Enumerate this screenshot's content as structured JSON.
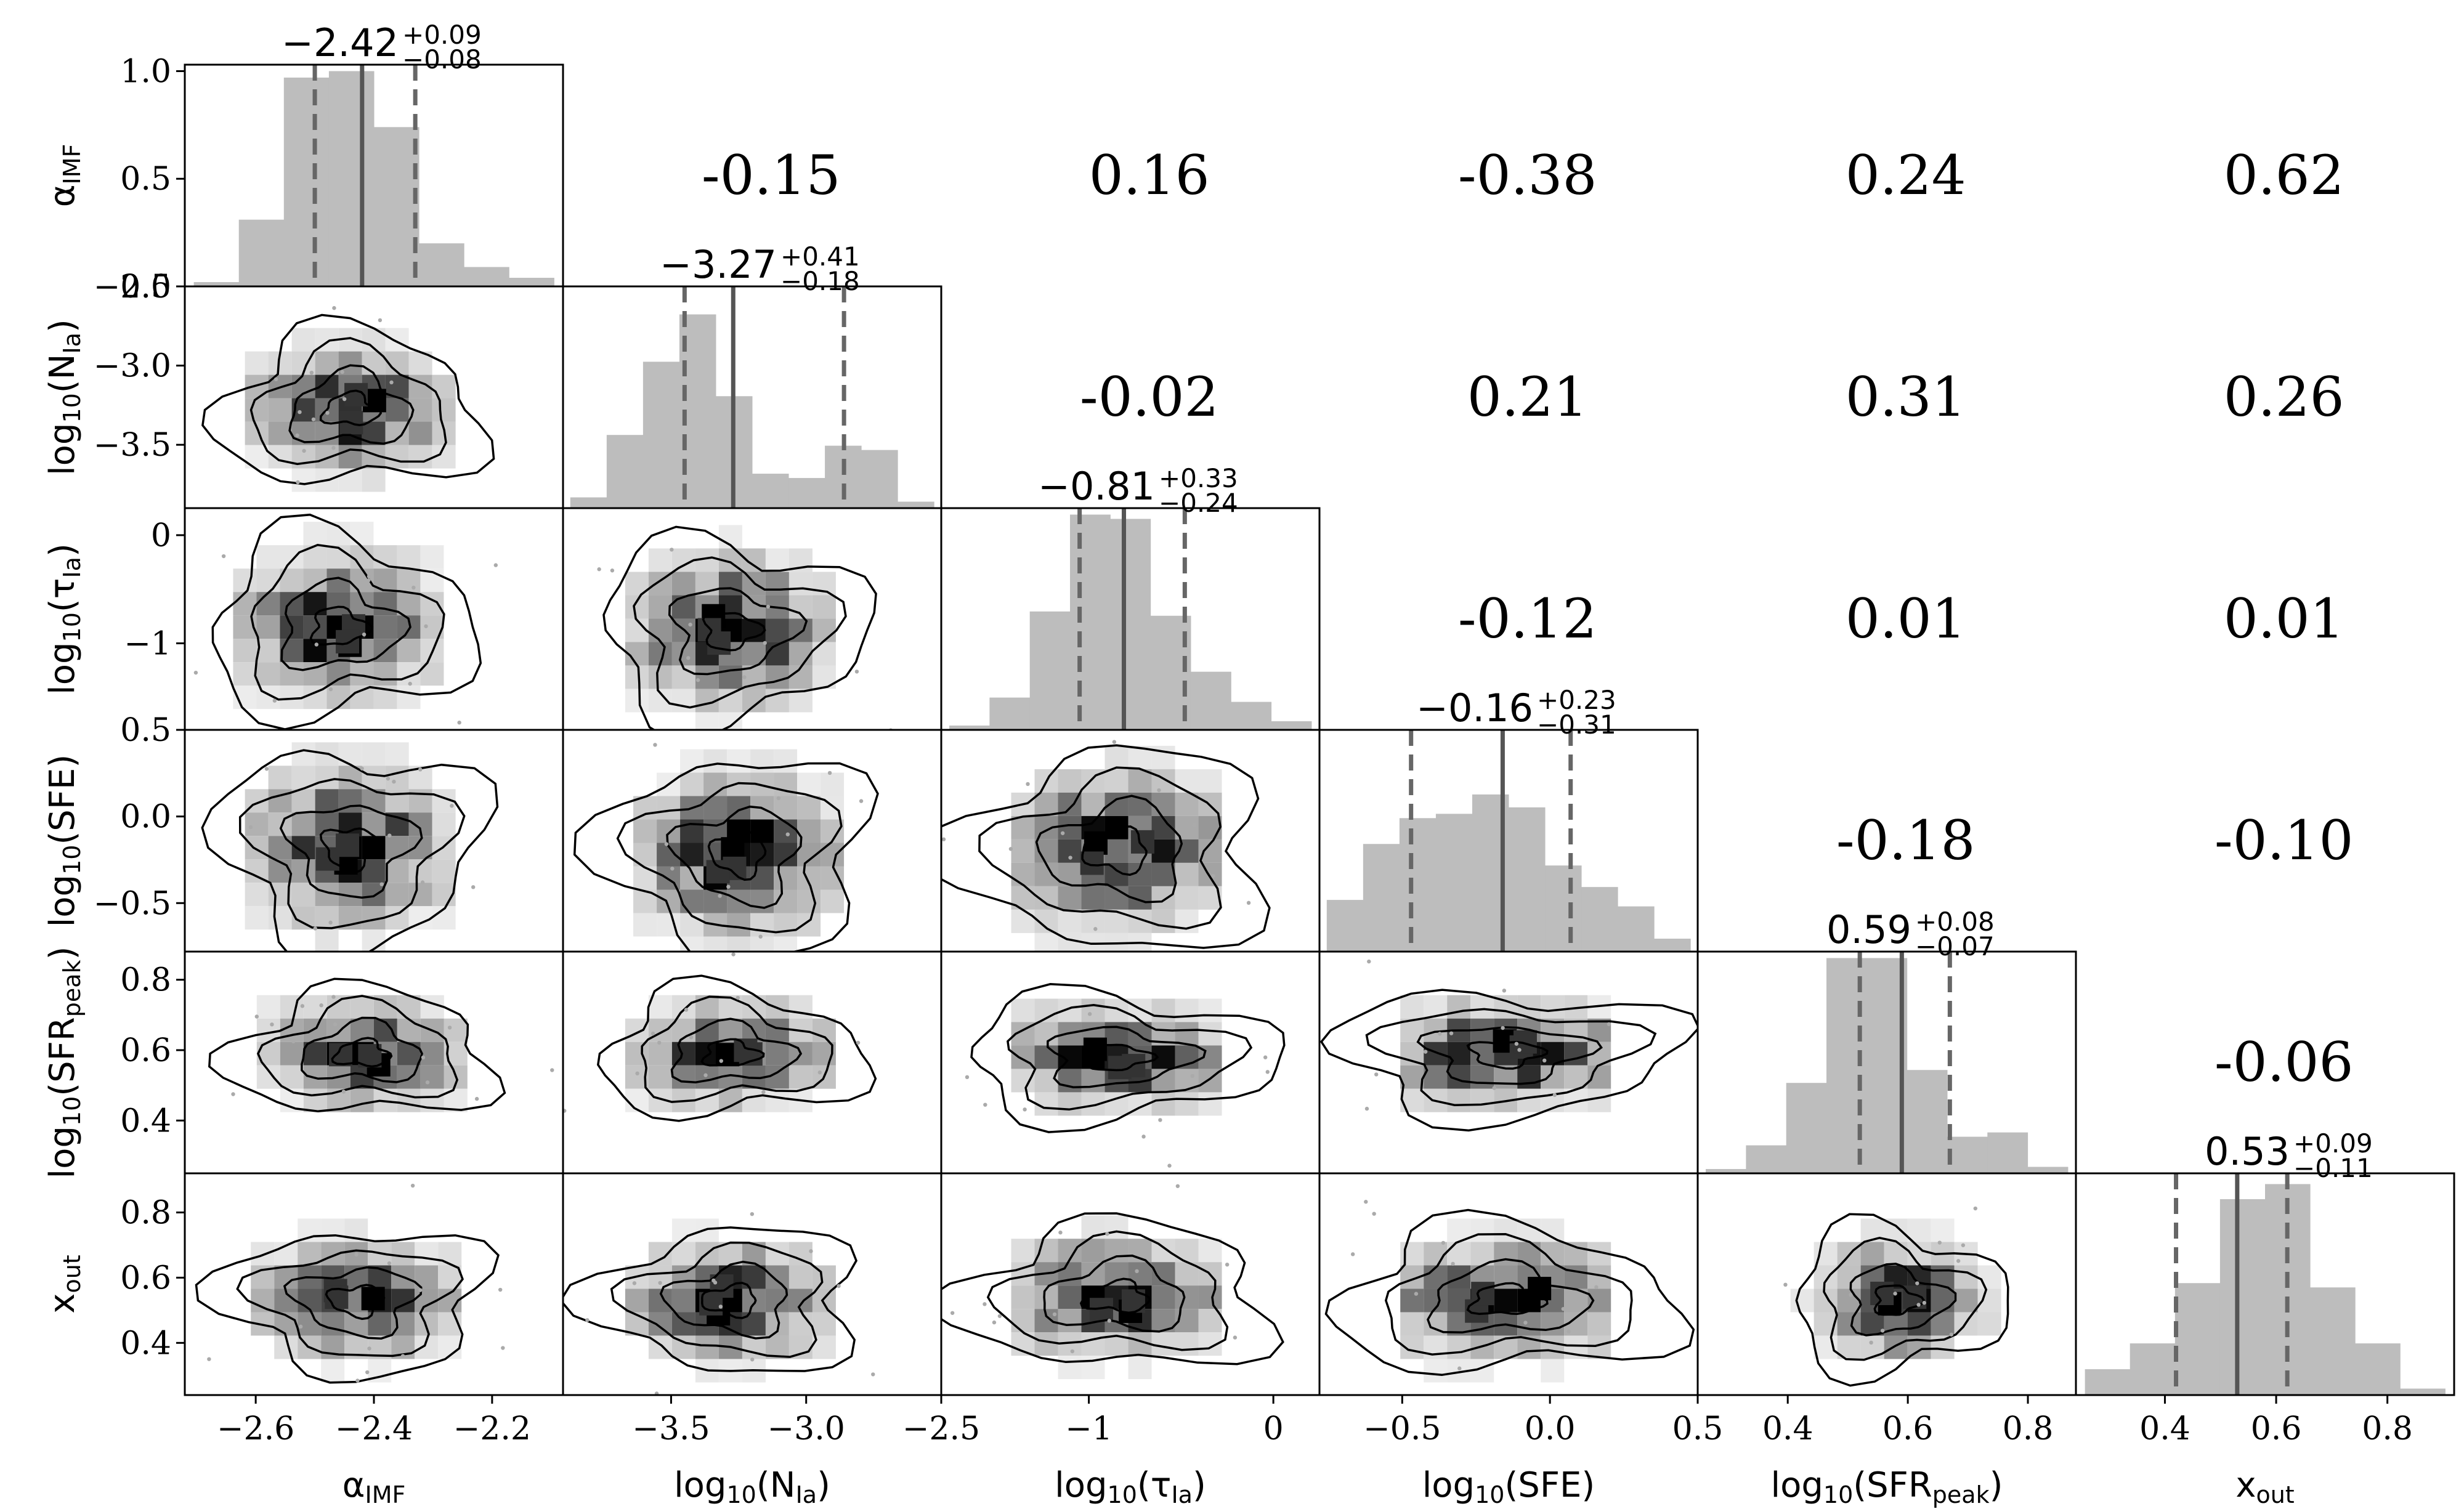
{
  "chart_data": {
    "type": "corner",
    "parameters": [
      {
        "label": "α",
        "label_sub": "IMF",
        "label_pre": "",
        "label_post": "",
        "range": [
          -2.72,
          -2.08
        ],
        "ticks": [
          -2.6,
          -2.4,
          -2.2
        ],
        "tick_labels": [
          "−2.6",
          "−2.4",
          "−2.2"
        ],
        "median": -2.42,
        "lo": -2.5,
        "hi": -2.33,
        "title_main": "−2.42",
        "title_plus": "+0.09",
        "title_minus": "−0.08"
      },
      {
        "label": "log",
        "label_sub": "10",
        "label_pre": "(N",
        "label_sub2": "Ia",
        "label_post": ")",
        "range": [
          -3.9,
          -2.5
        ],
        "ticks": [
          -3.5,
          -3.0,
          -2.5
        ],
        "tick_labels": [
          "−3.5",
          "−3.0",
          "−2.5"
        ],
        "median": -3.27,
        "lo": -3.45,
        "hi": -2.86,
        "title_main": "−3.27",
        "title_plus": "+0.41",
        "title_minus": "−0.18"
      },
      {
        "label": "log",
        "label_sub": "10",
        "label_pre": "(τ",
        "label_sub2": "Ia",
        "label_post": ")",
        "range": [
          -1.8,
          0.25
        ],
        "ticks": [
          -1,
          0
        ],
        "tick_labels": [
          "−1",
          "0"
        ],
        "median": -0.81,
        "lo": -1.05,
        "hi": -0.48,
        "title_main": "−0.81",
        "title_plus": "+0.33",
        "title_minus": "−0.24"
      },
      {
        "label": "log",
        "label_sub": "10",
        "label_pre": "(SFE)",
        "label_sub2": "",
        "label_post": "",
        "range": [
          -0.78,
          0.5
        ],
        "ticks": [
          -0.5,
          0.0,
          0.5
        ],
        "tick_labels": [
          "−0.5",
          "0.0",
          "0.5"
        ],
        "median": -0.16,
        "lo": -0.47,
        "hi": 0.07,
        "title_main": "−0.16",
        "title_plus": "+0.23",
        "title_minus": "−0.31"
      },
      {
        "label": "log",
        "label_sub": "10",
        "label_pre": "(SFR",
        "label_sub2": "peak",
        "label_post": ")",
        "range": [
          0.25,
          0.88
        ],
        "ticks": [
          0.4,
          0.6,
          0.8
        ],
        "tick_labels": [
          "0.4",
          "0.6",
          "0.8"
        ],
        "median": 0.59,
        "lo": 0.52,
        "hi": 0.67,
        "title_main": "0.59",
        "title_plus": "+0.08",
        "title_minus": "−0.07"
      },
      {
        "label": "x",
        "label_sub": "out",
        "label_pre": "",
        "label_sub2": "",
        "label_post": "",
        "range": [
          0.24,
          0.92
        ],
        "ticks": [
          0.4,
          0.6,
          0.8
        ],
        "tick_labels": [
          "0.4",
          "0.6",
          "0.8"
        ],
        "median": 0.53,
        "lo": 0.42,
        "hi": 0.62,
        "title_main": "0.53",
        "title_plus": "+0.09",
        "title_minus": "−0.11"
      }
    ],
    "diag_yaxis": {
      "range": [
        0,
        1.03
      ],
      "ticks": [
        0.0,
        0.5,
        1.0
      ],
      "tick_labels": [
        "0.0",
        "0.5",
        "1.0"
      ]
    },
    "histograms": [
      [
        0.02,
        0.31,
        0.97,
        1.0,
        0.74,
        0.2,
        0.09,
        0.04
      ],
      [
        0.05,
        0.34,
        0.68,
        0.9,
        0.52,
        0.16,
        0.14,
        0.29,
        0.27,
        0.03
      ],
      [
        0.02,
        0.15,
        0.55,
        1.0,
        0.98,
        0.53,
        0.27,
        0.13,
        0.04
      ],
      [
        0.24,
        0.5,
        0.62,
        0.64,
        0.73,
        0.67,
        0.4,
        0.3,
        0.21,
        0.06
      ],
      [
        0.02,
        0.13,
        0.42,
        1.0,
        1.0,
        0.48,
        0.17,
        0.19,
        0.03
      ],
      [
        0.12,
        0.24,
        0.52,
        0.91,
        0.98,
        0.5,
        0.24,
        0.03
      ]
    ],
    "correlations": [
      {
        "row": 0,
        "col": 1,
        "value": "-0.15"
      },
      {
        "row": 0,
        "col": 2,
        "value": "0.16"
      },
      {
        "row": 0,
        "col": 3,
        "value": "-0.38"
      },
      {
        "row": 0,
        "col": 4,
        "value": "0.24"
      },
      {
        "row": 0,
        "col": 5,
        "value": "0.62"
      },
      {
        "row": 1,
        "col": 2,
        "value": "-0.02"
      },
      {
        "row": 1,
        "col": 3,
        "value": "0.21"
      },
      {
        "row": 1,
        "col": 4,
        "value": "0.31"
      },
      {
        "row": 1,
        "col": 5,
        "value": "0.26"
      },
      {
        "row": 2,
        "col": 3,
        "value": "-0.12"
      },
      {
        "row": 2,
        "col": 4,
        "value": "0.01"
      },
      {
        "row": 2,
        "col": 5,
        "value": "0.01"
      },
      {
        "row": 3,
        "col": 4,
        "value": "-0.18"
      },
      {
        "row": 3,
        "col": 5,
        "value": "-0.10"
      },
      {
        "row": 4,
        "col": 5,
        "value": "-0.06"
      }
    ],
    "pair_centers": [
      {
        "row": 1,
        "col": 0,
        "x": -2.44,
        "y": -3.28,
        "sx": 0.1,
        "sy": 0.22
      },
      {
        "row": 2,
        "col": 0,
        "x": -2.46,
        "y": -0.85,
        "sx": 0.1,
        "sy": 0.38
      },
      {
        "row": 2,
        "col": 1,
        "x": -3.28,
        "y": -0.88,
        "sx": 0.22,
        "sy": 0.38
      },
      {
        "row": 3,
        "col": 0,
        "x": -2.44,
        "y": -0.18,
        "sx": 0.1,
        "sy": 0.26
      },
      {
        "row": 3,
        "col": 1,
        "x": -3.25,
        "y": -0.22,
        "sx": 0.22,
        "sy": 0.26
      },
      {
        "row": 3,
        "col": 2,
        "x": -0.85,
        "y": -0.2,
        "sx": 0.38,
        "sy": 0.26
      },
      {
        "row": 4,
        "col": 0,
        "x": -2.42,
        "y": 0.59,
        "sx": 0.1,
        "sy": 0.08
      },
      {
        "row": 4,
        "col": 1,
        "x": -3.28,
        "y": 0.59,
        "sx": 0.22,
        "sy": 0.08
      },
      {
        "row": 4,
        "col": 2,
        "x": -0.85,
        "y": 0.58,
        "sx": 0.38,
        "sy": 0.08
      },
      {
        "row": 4,
        "col": 3,
        "x": -0.15,
        "y": 0.59,
        "sx": 0.26,
        "sy": 0.08
      },
      {
        "row": 5,
        "col": 0,
        "x": -2.43,
        "y": 0.53,
        "sx": 0.1,
        "sy": 0.1
      },
      {
        "row": 5,
        "col": 1,
        "x": -3.28,
        "y": 0.53,
        "sx": 0.22,
        "sy": 0.1
      },
      {
        "row": 5,
        "col": 2,
        "x": -0.85,
        "y": 0.54,
        "sx": 0.38,
        "sy": 0.1
      },
      {
        "row": 5,
        "col": 3,
        "x": -0.15,
        "y": 0.53,
        "sx": 0.26,
        "sy": 0.1
      },
      {
        "row": 5,
        "col": 4,
        "x": 0.58,
        "y": 0.53,
        "sx": 0.08,
        "sy": 0.1
      }
    ],
    "colors": {
      "hist_fill": "#bdbdbd",
      "median_line": "#555555",
      "quantile_line": "#666666",
      "contour": "#000000",
      "frame": "#000000"
    }
  }
}
